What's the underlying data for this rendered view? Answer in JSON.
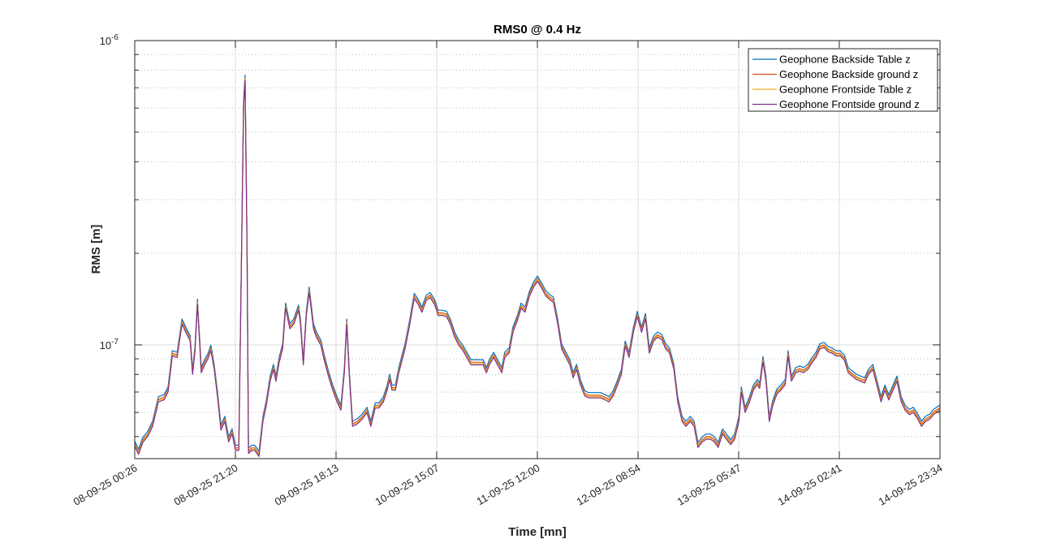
{
  "chart_data": {
    "type": "line",
    "title": "RMS0 @ 0.4 Hz",
    "xlabel": "Time [mn]",
    "ylabel": "RMS [m]",
    "yscale": "log",
    "ylim": [
      4.23e-08,
      1e-06
    ],
    "xlim_hours": [
      0,
      167.13
    ],
    "grid": "on (major solid, minor dotted on y)",
    "legend_position": "top-right",
    "x_tick_hours": [
      0,
      20.89,
      41.78,
      62.67,
      83.57,
      104.46,
      125.35,
      146.24,
      167.13
    ],
    "x_tick_labels": [
      "08-09-25 00:26",
      "08-09-25 21:20",
      "09-09-25 18:13",
      "10-09-25 15:07",
      "11-09-25 12:00",
      "12-09-25 08:54",
      "13-09-25 05:47",
      "14-09-25 02:41",
      "14-09-25 23:34"
    ],
    "y_ticks": [
      {
        "value": 1e-07,
        "base": "10",
        "exp": "-7"
      },
      {
        "value": 1e-06,
        "base": "10",
        "exp": "-6"
      }
    ],
    "value_unit": "1e-8 m",
    "x_hours": [
      0,
      0.8,
      1.7,
      2.7,
      3.7,
      4.9,
      6.1,
      6.9,
      7.8,
      8.8,
      9.8,
      10.6,
      11.5,
      12.0,
      12.5,
      13.0,
      13.5,
      13.8,
      14.5,
      15.2,
      15.8,
      16.5,
      17.2,
      17.9,
      18.7,
      19.5,
      20.2,
      20.9,
      21.6,
      22.1,
      22.6,
      22.9,
      23.3,
      23.6,
      24.3,
      24.9,
      25.8,
      26.6,
      27.3,
      28.1,
      28.8,
      29.3,
      30.0,
      30.7,
      31.3,
      32.2,
      33.0,
      34.0,
      34.4,
      35.0,
      35.6,
      36.2,
      37.1,
      37.7,
      38.6,
      39.4,
      40.3,
      41.1,
      42.0,
      42.8,
      43.5,
      44.0,
      44.5,
      45.2,
      46.2,
      47.2,
      48.2,
      49.0,
      49.9,
      50.7,
      51.6,
      52.4,
      52.9,
      53.4,
      54.1,
      54.8,
      55.4,
      56.1,
      57.1,
      58.0,
      58.8,
      59.6,
      60.5,
      61.3,
      62.2,
      63.0,
      63.8,
      64.7,
      65.5,
      66.4,
      67.2,
      68.1,
      68.9,
      69.8,
      70.6,
      71.4,
      72.3,
      73.0,
      73.6,
      74.5,
      75.3,
      76.2,
      76.8,
      77.7,
      78.5,
      79.4,
      80.2,
      81.0,
      81.9,
      82.7,
      83.6,
      84.4,
      85.3,
      86.1,
      86.9,
      87.8,
      88.6,
      89.5,
      90.3,
      91.0,
      91.7,
      92.5,
      93.4,
      94.2,
      95.1,
      95.9,
      96.7,
      97.6,
      98.4,
      99.3,
      100.1,
      101.0,
      101.8,
      102.6,
      103.5,
      104.3,
      105.2,
      106.0,
      106.8,
      107.7,
      108.5,
      109.4,
      110.2,
      111.0,
      111.9,
      112.7,
      113.6,
      114.4,
      115.3,
      116.1,
      116.9,
      117.8,
      118.6,
      119.5,
      120.3,
      121.1,
      122.0,
      122.8,
      123.7,
      124.5,
      125.4,
      125.9,
      126.7,
      127.6,
      128.4,
      129.2,
      129.7,
      130.4,
      131.0,
      131.7,
      132.4,
      133.3,
      134.1,
      135.0,
      135.6,
      136.3,
      137.2,
      138.0,
      138.8,
      139.7,
      140.5,
      141.4,
      142.2,
      143.1,
      143.9,
      144.7,
      145.6,
      146.4,
      147.3,
      148.1,
      148.9,
      149.8,
      150.6,
      151.5,
      152.3,
      153.2,
      154.0,
      154.9,
      155.7,
      156.5,
      157.4,
      158.2,
      159.1,
      159.9,
      160.8,
      161.6,
      162.4,
      163.3,
      164.1,
      165.0,
      165.8,
      167.1
    ],
    "reference_values": [
      4.64,
      4.37,
      4.79,
      5.0,
      5.4,
      6.5,
      6.6,
      7.0,
      9.2,
      9.1,
      11.7,
      11.0,
      10.3,
      8.0,
      9.5,
      13.6,
      10.0,
      8.1,
      8.6,
      9.0,
      9.6,
      8.3,
      6.7,
      5.25,
      5.6,
      4.8,
      5.1,
      4.5,
      4.5,
      16.8,
      61,
      74,
      21.5,
      4.4,
      4.5,
      4.5,
      4.3,
      5.6,
      6.3,
      7.6,
      8.3,
      7.6,
      8.8,
      9.7,
      13.2,
      11.3,
      11.7,
      13.0,
      11.7,
      8.6,
      12.4,
      14.9,
      11.3,
      10.6,
      10.0,
      8.8,
      7.8,
      7.1,
      6.5,
      6.1,
      8.1,
      11.7,
      8.1,
      5.4,
      5.5,
      5.7,
      6.0,
      5.4,
      6.2,
      6.2,
      6.5,
      7.1,
      7.7,
      7.1,
      7.1,
      8.1,
      8.8,
      9.7,
      11.7,
      14.2,
      13.6,
      12.8,
      14.0,
      14.3,
      13.6,
      12.5,
      12.5,
      12.4,
      11.7,
      10.6,
      10.0,
      9.6,
      9.1,
      8.6,
      8.6,
      8.6,
      8.6,
      8.1,
      8.6,
      9.1,
      8.6,
      8.1,
      9.1,
      9.4,
      11.0,
      12.0,
      13.2,
      12.8,
      14.4,
      15.4,
      16.2,
      15.4,
      14.5,
      14.1,
      13.8,
      11.7,
      9.7,
      9.1,
      8.6,
      7.8,
      8.3,
      7.4,
      6.8,
      6.7,
      6.7,
      6.7,
      6.7,
      6.6,
      6.5,
      6.8,
      7.3,
      8.0,
      9.9,
      9.1,
      11.0,
      12.4,
      11.0,
      12.2,
      9.4,
      10.3,
      10.6,
      10.4,
      9.7,
      9.4,
      8.3,
      6.5,
      5.6,
      5.4,
      5.6,
      5.4,
      4.6,
      4.8,
      4.9,
      4.9,
      4.8,
      4.6,
      5.1,
      4.9,
      4.7,
      4.9,
      5.6,
      7.0,
      6.0,
      6.5,
      7.1,
      7.4,
      7.2,
      8.8,
      7.6,
      5.6,
      6.3,
      6.9,
      7.1,
      7.4,
      9.2,
      7.6,
      8.1,
      8.2,
      8.1,
      8.3,
      8.7,
      9.1,
      9.7,
      9.8,
      9.5,
      9.4,
      9.2,
      9.2,
      8.9,
      8.1,
      7.9,
      7.7,
      7.6,
      7.5,
      8.0,
      8.3,
      7.4,
      6.5,
      7.1,
      6.6,
      7.1,
      7.6,
      6.5,
      6.1,
      5.9,
      6.0,
      5.75,
      5.4,
      5.6,
      5.7,
      5.9,
      6.1
    ],
    "series": [
      {
        "name": "Geophone Backside Table z",
        "color": "#0072BD",
        "ratio_to_reference": 1.04
      },
      {
        "name": "Geophone Backside ground z",
        "color": "#D95319",
        "ratio_to_reference": 1.02
      },
      {
        "name": "Geophone Frontside Table z",
        "color": "#EDB120",
        "ratio_to_reference": 1.01
      },
      {
        "name": "Geophone Frontside ground z",
        "color": "#7E2F8E",
        "ratio_to_reference": 1.0
      }
    ]
  }
}
